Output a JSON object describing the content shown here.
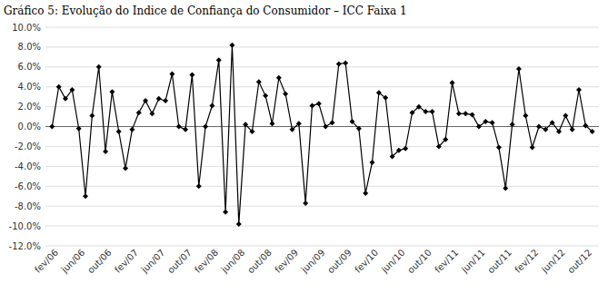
{
  "chart_data": {
    "type": "line",
    "title": "Gráfico 5: Evolução do Indice de Confiança do Consumidor – ICC Faixa 1",
    "categories": [
      null,
      "fev/06",
      null,
      null,
      null,
      "jun/06",
      null,
      null,
      null,
      "out/06",
      null,
      null,
      null,
      "fev/07",
      null,
      null,
      null,
      "jun/07",
      null,
      null,
      null,
      "out/07",
      null,
      null,
      null,
      "fev/08",
      null,
      null,
      null,
      "jun/08",
      null,
      null,
      null,
      "out/08",
      null,
      null,
      null,
      "fev/09",
      null,
      null,
      null,
      "jun/09",
      null,
      null,
      null,
      "out/09",
      null,
      null,
      null,
      "fev/10",
      null,
      null,
      null,
      "jun/10",
      null,
      null,
      null,
      "out/10",
      null,
      null,
      null,
      "fev/11",
      null,
      null,
      null,
      "jun/11",
      null,
      null,
      null,
      "out/11",
      null,
      null,
      null,
      "fev/12",
      null,
      null,
      null,
      "jun/12",
      null,
      null,
      null,
      "out/12"
    ],
    "values": [
      0.0,
      4.0,
      2.8,
      3.7,
      -0.2,
      -7.0,
      1.1,
      6.0,
      -2.5,
      3.5,
      -0.5,
      -4.2,
      -0.3,
      1.4,
      2.6,
      1.3,
      2.8,
      2.6,
      5.3,
      0.0,
      -0.3,
      5.2,
      -6.0,
      0.0,
      2.1,
      6.7,
      -8.6,
      8.2,
      -9.8,
      0.2,
      -0.5,
      4.5,
      3.1,
      0.3,
      4.9,
      3.3,
      -0.3,
      0.3,
      -7.7,
      2.1,
      2.3,
      0.0,
      0.4,
      6.3,
      6.4,
      0.5,
      -0.2,
      -6.7,
      -3.6,
      3.4,
      2.9,
      -3.0,
      -2.4,
      -2.2,
      1.4,
      2.0,
      1.5,
      1.5,
      -2.0,
      -1.3,
      4.4,
      1.3,
      1.3,
      1.2,
      0.0,
      0.5,
      0.4,
      -2.1,
      -6.2,
      0.2,
      5.8,
      1.1,
      -2.1,
      0.0,
      -0.3,
      0.4,
      -0.5,
      1.1,
      -0.3,
      3.7,
      0.1,
      -0.5
    ],
    "color": "#000000",
    "marker": "diamond",
    "line_style": "solid",
    "ylim": [
      -12.0,
      10.0
    ],
    "yticks": [
      {
        "value": -12.0,
        "label": "-12.0%"
      },
      {
        "value": -10.0,
        "label": "-10.0%"
      },
      {
        "value": -8.0,
        "label": "-8.0%"
      },
      {
        "value": -6.0,
        "label": "-6.0%"
      },
      {
        "value": -4.0,
        "label": "-4.0%"
      },
      {
        "value": -2.0,
        "label": "-2.0%"
      },
      {
        "value": 0.0,
        "label": "0.0%"
      },
      {
        "value": 2.0,
        "label": "2.0%"
      },
      {
        "value": 4.0,
        "label": "4.0%"
      },
      {
        "value": 6.0,
        "label": "6.0%"
      },
      {
        "value": 8.0,
        "label": "8.0%"
      },
      {
        "value": 10.0,
        "label": "10.0%"
      }
    ],
    "grid": true
  }
}
